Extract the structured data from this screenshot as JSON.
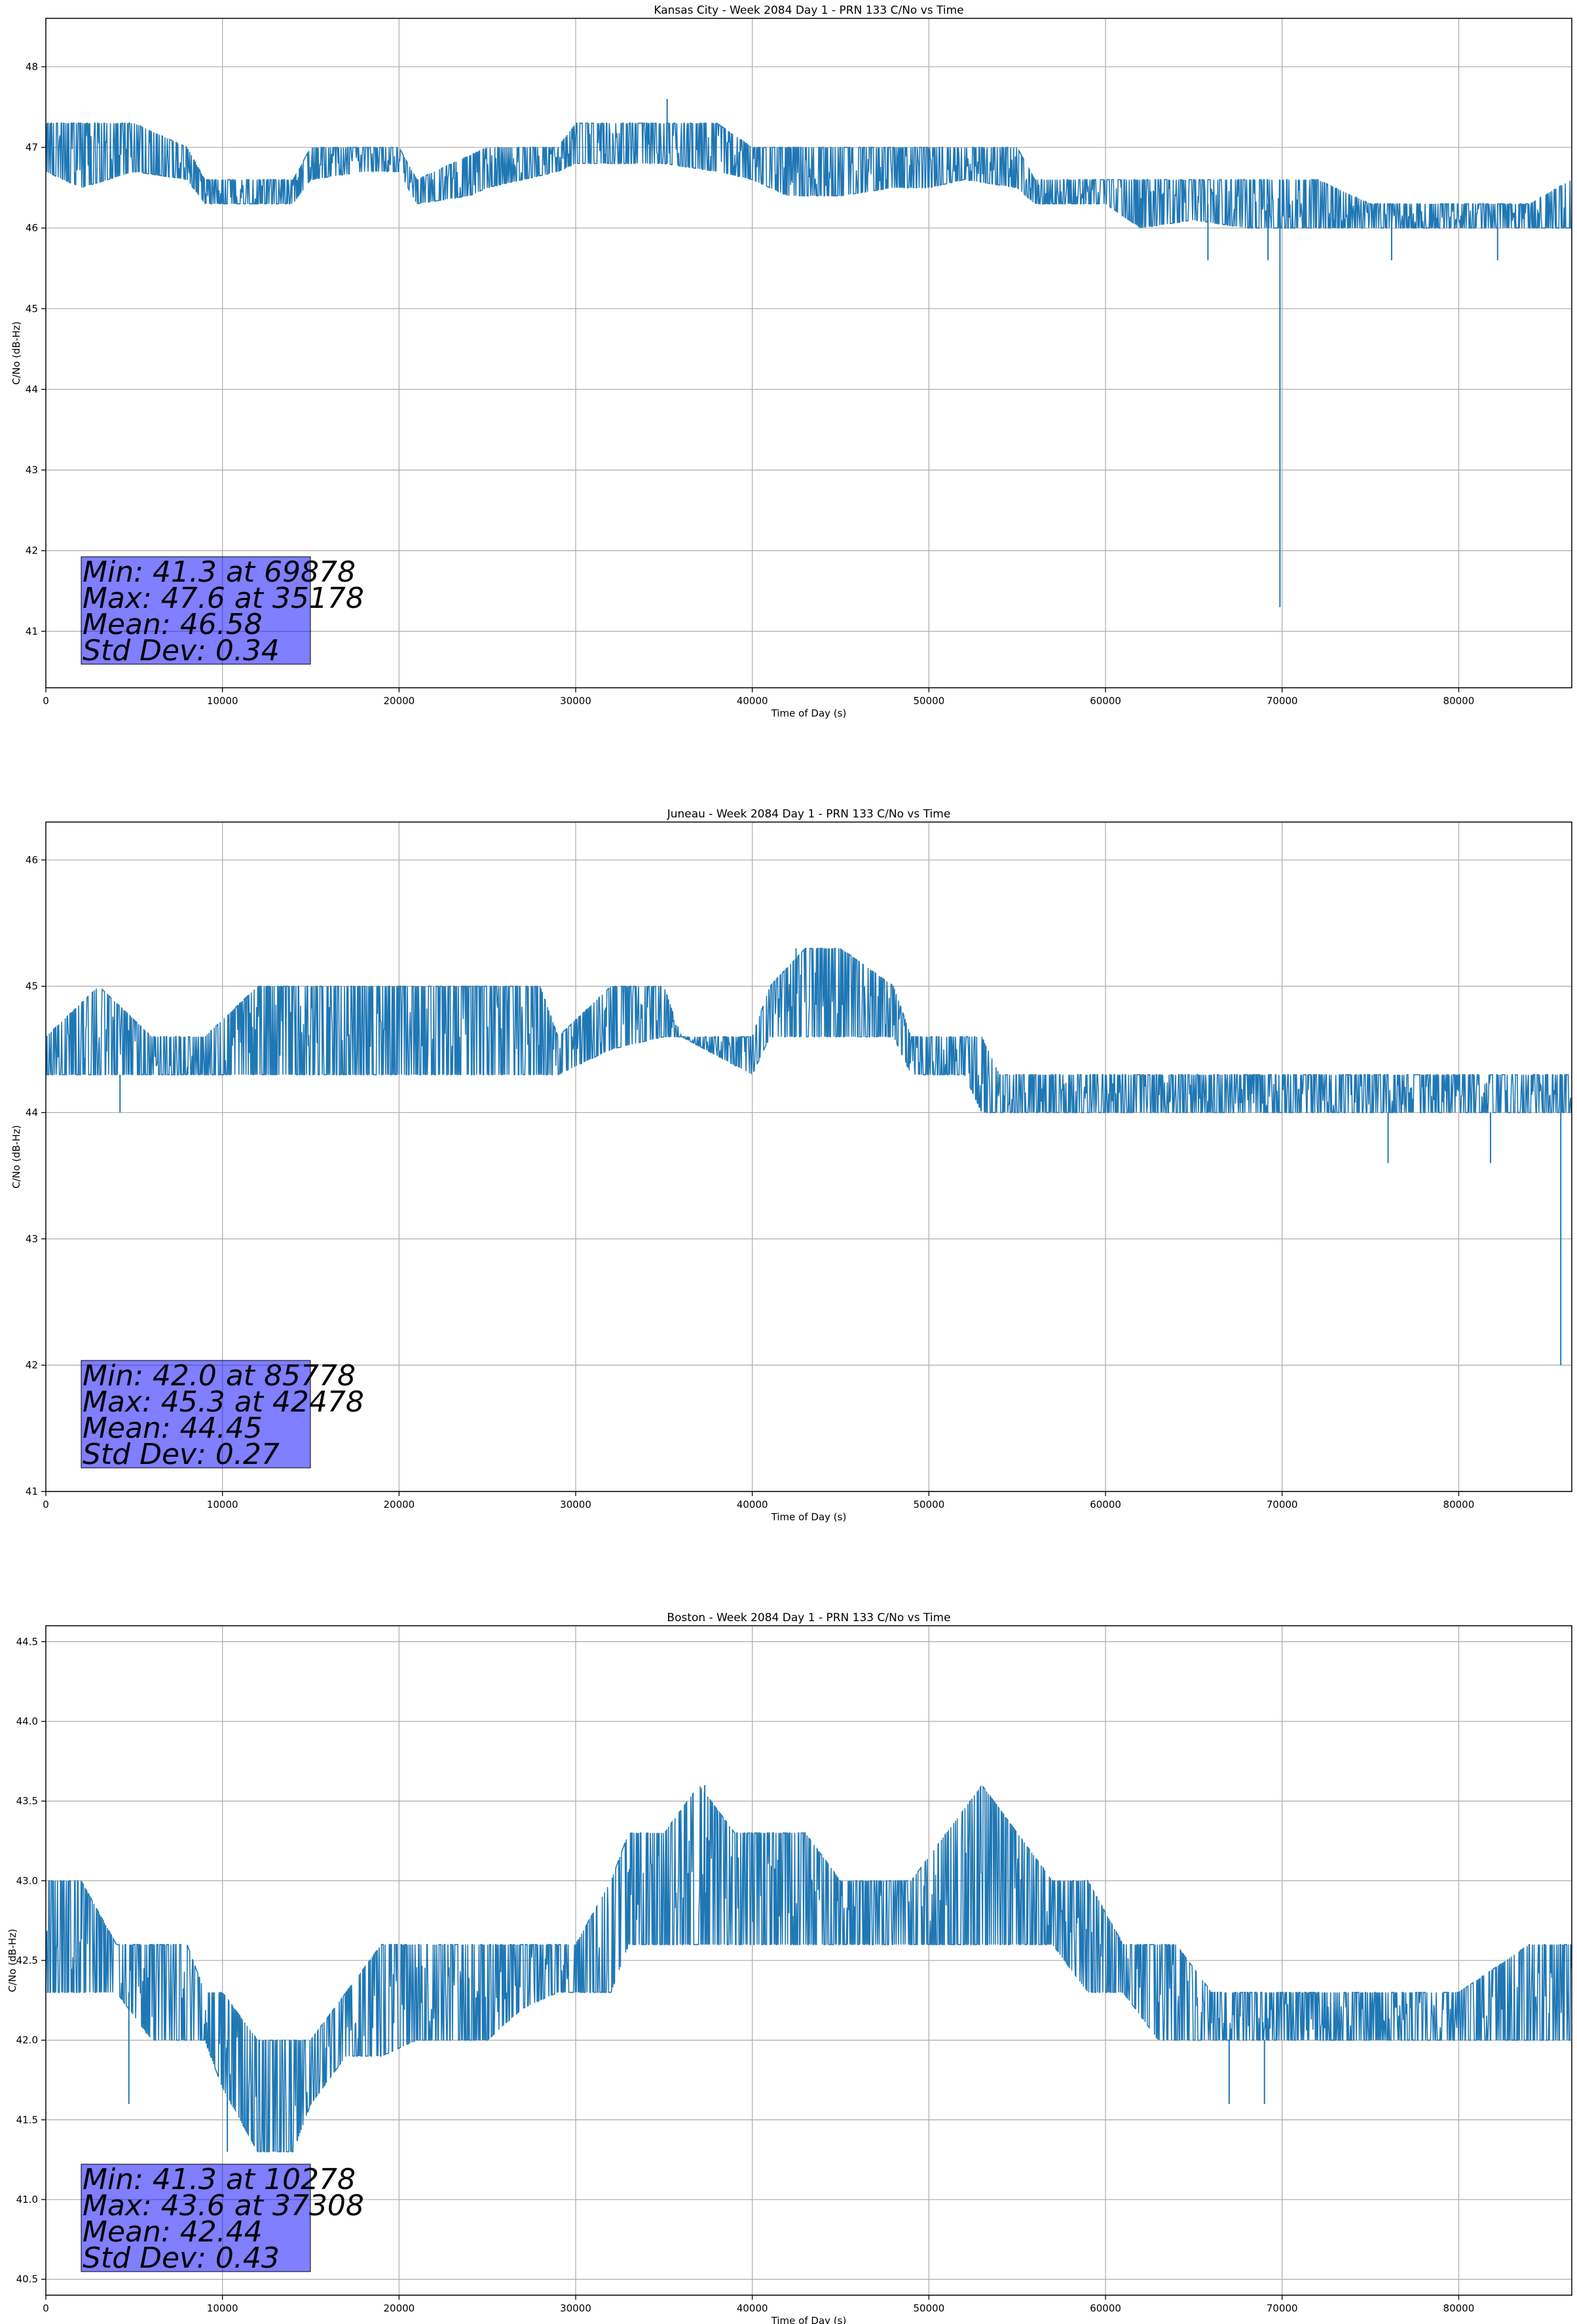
{
  "colors": {
    "series": "#1f77b4",
    "stats_box": "#8080ff",
    "grid": "#b0b0b0"
  },
  "chart_data": [
    {
      "type": "line",
      "title": "Kansas City - Week 2084 Day 1 - PRN 133 C/No vs Time",
      "xlabel": "Time of Day (s)",
      "ylabel": "C/No (dB-Hz)",
      "xlim": [
        0,
        86400
      ],
      "ylim": [
        40.3,
        48.6
      ],
      "xticks": [
        0,
        10000,
        20000,
        30000,
        40000,
        50000,
        60000,
        70000,
        80000
      ],
      "xtick_labels": [
        "0",
        "10000",
        "20000",
        "30000",
        "40000",
        "50000",
        "60000",
        "70000",
        "80000"
      ],
      "yticks": [
        41,
        42,
        43,
        44,
        45,
        46,
        47,
        48
      ],
      "ytick_labels": [
        "41",
        "42",
        "43",
        "44",
        "45",
        "46",
        "47",
        "48"
      ],
      "grid": true,
      "series": [
        {
          "x": [
            0,
            2000,
            5000,
            8000,
            9000,
            12000,
            14000,
            15000,
            18000,
            20000,
            21000,
            24000,
            25000,
            27000,
            29000,
            30000,
            32000,
            35000,
            38000,
            40000,
            42000,
            45000,
            48000,
            50000,
            52000,
            55000,
            56000,
            58000,
            60000,
            62000,
            65000,
            68000,
            70000,
            72000,
            75000,
            78000,
            80000,
            82000,
            84000,
            86400
          ],
          "low": [
            46.7,
            46.5,
            46.7,
            46.6,
            46.3,
            46.3,
            46.3,
            46.6,
            46.7,
            46.7,
            46.3,
            46.4,
            46.5,
            46.6,
            46.7,
            46.8,
            46.8,
            46.8,
            46.7,
            46.6,
            46.4,
            46.4,
            46.5,
            46.5,
            46.6,
            46.5,
            46.3,
            46.3,
            46.3,
            46.0,
            46.1,
            46.0,
            46.0,
            46.0,
            46.0,
            46.0,
            46.0,
            46.0,
            46.0,
            46.0
          ],
          "high": [
            47.3,
            47.3,
            47.3,
            47.0,
            46.6,
            46.6,
            46.6,
            47.0,
            47.0,
            47.0,
            46.6,
            46.9,
            47.0,
            47.0,
            47.0,
            47.3,
            47.3,
            47.3,
            47.3,
            47.0,
            47.0,
            47.0,
            47.0,
            47.0,
            47.0,
            47.0,
            46.6,
            46.6,
            46.6,
            46.6,
            46.6,
            46.6,
            46.6,
            46.6,
            46.3,
            46.3,
            46.3,
            46.3,
            46.3,
            46.6
          ]
        }
      ],
      "spikes": [
        {
          "x": 69878,
          "low": 41.3,
          "high": 46.6
        },
        {
          "x": 35178,
          "low": 46.8,
          "high": 47.6
        },
        {
          "x": 65800,
          "low": 45.6,
          "high": 46.3
        },
        {
          "x": 76200,
          "low": 45.6,
          "high": 46.3
        },
        {
          "x": 82200,
          "low": 45.6,
          "high": 46.3
        },
        {
          "x": 69200,
          "low": 45.6,
          "high": 46.3
        }
      ],
      "stats": [
        "Min: 41.3 at 69878",
        "Max: 47.6 at 35178",
        "Mean: 46.58",
        "Std Dev: 0.34"
      ]
    },
    {
      "type": "line",
      "title": "Juneau - Week 2084 Day 1 - PRN 133 C/No vs Time",
      "xlabel": "Time of Day (s)",
      "ylabel": "C/No (dB-Hz)",
      "xlim": [
        0,
        86400
      ],
      "ylim": [
        41.0,
        46.3
      ],
      "xticks": [
        0,
        10000,
        20000,
        30000,
        40000,
        50000,
        60000,
        70000,
        80000
      ],
      "xtick_labels": [
        "0",
        "10000",
        "20000",
        "30000",
        "40000",
        "50000",
        "60000",
        "70000",
        "80000"
      ],
      "yticks": [
        41,
        42,
        43,
        44,
        45,
        46
      ],
      "ytick_labels": [
        "41",
        "42",
        "43",
        "44",
        "45",
        "46"
      ],
      "grid": true,
      "series": [
        {
          "x": [
            0,
            3000,
            6000,
            9000,
            12000,
            15000,
            18000,
            20000,
            24000,
            28000,
            29000,
            32000,
            35000,
            36000,
            40000,
            41000,
            43000,
            45000,
            48000,
            49000,
            52000,
            53000,
            54000,
            57000,
            60000,
            65000,
            70000,
            75000,
            80000,
            86400
          ],
          "low": [
            44.3,
            44.3,
            44.3,
            44.3,
            44.3,
            44.3,
            44.3,
            44.3,
            44.3,
            44.3,
            44.3,
            44.5,
            44.6,
            44.6,
            44.3,
            44.6,
            44.6,
            44.6,
            44.6,
            44.3,
            44.3,
            44.0,
            44.0,
            44.0,
            44.0,
            44.0,
            44.0,
            44.0,
            44.0,
            44.0
          ],
          "high": [
            44.6,
            45.0,
            44.6,
            44.6,
            45.0,
            45.0,
            45.0,
            45.0,
            45.0,
            45.0,
            44.6,
            45.0,
            45.0,
            44.6,
            44.6,
            45.0,
            45.3,
            45.3,
            45.0,
            44.6,
            44.6,
            44.6,
            44.3,
            44.3,
            44.3,
            44.3,
            44.3,
            44.3,
            44.3,
            44.3
          ]
        }
      ],
      "spikes": [
        {
          "x": 85778,
          "low": 42.0,
          "high": 44.3
        },
        {
          "x": 42478,
          "low": 44.6,
          "high": 45.3
        },
        {
          "x": 4200,
          "low": 44.0,
          "high": 44.3
        },
        {
          "x": 76000,
          "low": 43.6,
          "high": 44.0
        },
        {
          "x": 81800,
          "low": 43.6,
          "high": 44.0
        }
      ],
      "stats": [
        "Min: 42.0 at 85778",
        "Max: 45.3 at 42478",
        "Mean: 44.45",
        "Std Dev: 0.27"
      ]
    },
    {
      "type": "line",
      "title": "Boston - Week 2084 Day 1 - PRN 133 C/No vs Time",
      "xlabel": "Time of Day (s)",
      "ylabel": "C/No (dB-Hz)",
      "xlim": [
        0,
        86400
      ],
      "ylim": [
        40.4,
        44.6
      ],
      "xticks": [
        0,
        10000,
        20000,
        30000,
        40000,
        50000,
        60000,
        70000,
        80000
      ],
      "xtick_labels": [
        "0",
        "10000",
        "20000",
        "30000",
        "40000",
        "50000",
        "60000",
        "70000",
        "80000"
      ],
      "yticks": [
        40.5,
        41.0,
        41.5,
        42.0,
        42.5,
        43.0,
        43.5,
        44.0,
        44.5
      ],
      "ytick_labels": [
        "40.5",
        "41.0",
        "41.5",
        "42.0",
        "42.5",
        "43.0",
        "43.5",
        "44.0",
        "44.5"
      ],
      "grid": true,
      "series": [
        {
          "x": [
            0,
            2000,
            4000,
            6000,
            8000,
            9000,
            10000,
            12000,
            14000,
            15000,
            17000,
            19000,
            21000,
            23000,
            25000,
            27000,
            29000,
            30000,
            32000,
            33000,
            35000,
            37000,
            39000,
            41000,
            43000,
            45000,
            47000,
            49000,
            51000,
            53000,
            55000,
            57000,
            59000,
            61000,
            63000,
            64000,
            66000,
            70000,
            75000,
            80000,
            84000,
            86400
          ],
          "low": [
            42.3,
            42.3,
            42.3,
            42.0,
            42.0,
            42.0,
            41.7,
            41.3,
            41.3,
            41.6,
            41.9,
            41.9,
            42.0,
            42.0,
            42.0,
            42.2,
            42.3,
            42.3,
            42.3,
            42.6,
            42.6,
            42.6,
            42.6,
            42.6,
            42.6,
            42.6,
            42.6,
            42.6,
            42.6,
            42.6,
            42.6,
            42.6,
            42.3,
            42.3,
            42.0,
            42.0,
            42.0,
            42.0,
            42.0,
            42.0,
            42.0,
            42.0
          ],
          "high": [
            43.0,
            43.0,
            42.6,
            42.6,
            42.6,
            42.3,
            42.3,
            42.0,
            42.0,
            42.0,
            42.3,
            42.6,
            42.6,
            42.6,
            42.6,
            42.6,
            42.6,
            42.6,
            43.0,
            43.3,
            43.3,
            43.6,
            43.3,
            43.3,
            43.3,
            43.0,
            43.0,
            43.0,
            43.3,
            43.6,
            43.3,
            43.0,
            43.0,
            42.6,
            42.6,
            42.6,
            42.3,
            42.3,
            42.3,
            42.3,
            42.6,
            42.6
          ]
        }
      ],
      "spikes": [
        {
          "x": 10278,
          "low": 41.3,
          "high": 42.0
        },
        {
          "x": 37308,
          "low": 42.9,
          "high": 43.6
        },
        {
          "x": 4700,
          "low": 41.6,
          "high": 42.3
        },
        {
          "x": 67000,
          "low": 41.6,
          "high": 42.0
        },
        {
          "x": 69000,
          "low": 41.6,
          "high": 42.0
        }
      ],
      "stats": [
        "Min: 41.3 at 10278",
        "Max: 43.6 at 37308",
        "Mean: 42.44",
        "Std Dev: 0.43"
      ]
    }
  ]
}
